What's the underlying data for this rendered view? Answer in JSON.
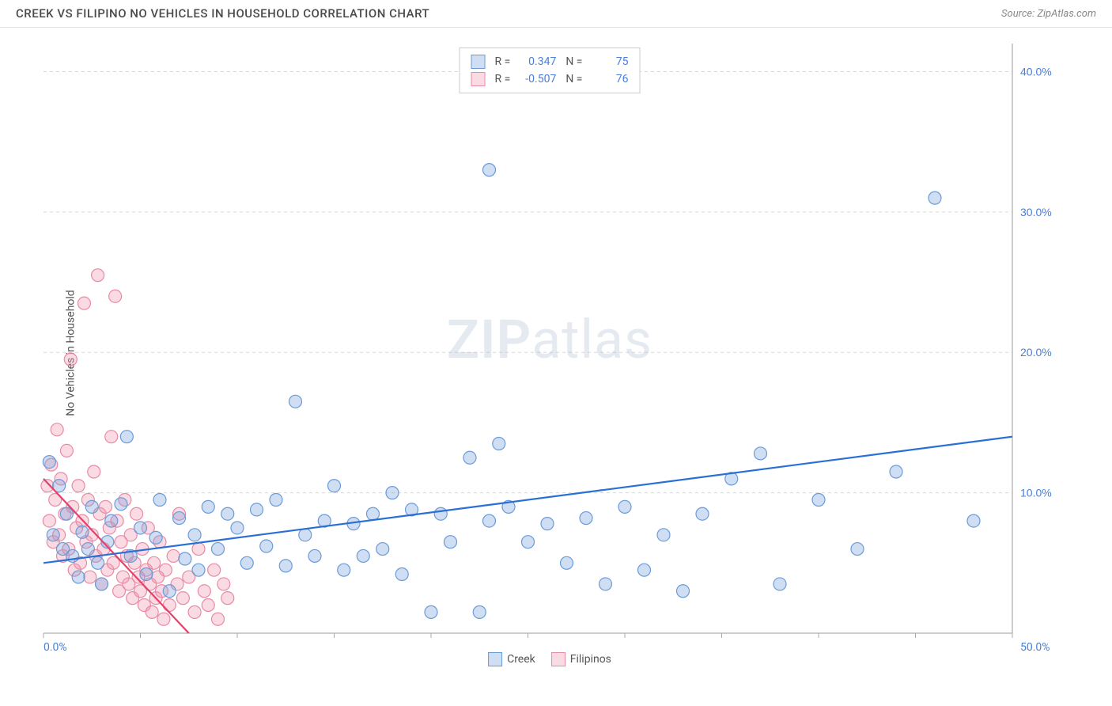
{
  "header": {
    "title": "CREEK VS FILIPINO NO VEHICLES IN HOUSEHOLD CORRELATION CHART",
    "source_label": "Source:",
    "source_name": "ZipAtlas.com"
  },
  "y_axis_label": "No Vehicles in Household",
  "watermark": {
    "bold": "ZIP",
    "rest": "atlas"
  },
  "chart": {
    "type": "scatter",
    "xlim": [
      0,
      50
    ],
    "ylim": [
      0,
      42
    ],
    "x_ticks": [
      0,
      5,
      10,
      15,
      20,
      25,
      30,
      35,
      40,
      45,
      50
    ],
    "y_gridlines": [
      10,
      20,
      30,
      40
    ],
    "y_tick_labels": [
      "10.0%",
      "20.0%",
      "30.0%",
      "40.0%"
    ],
    "x_min_label": "0.0%",
    "x_max_label": "50.0%",
    "grid_color": "#d8d8d8",
    "axis_color": "#999",
    "tick_color": "#aaa",
    "label_color": "#4a7fd8",
    "label_fontsize": 14,
    "background_color": "#ffffff",
    "marker_radius": 8,
    "marker_stroke_width": 1.2,
    "trend_line_width": 2.2
  },
  "series": {
    "creek": {
      "label": "Creek",
      "fill": "rgba(120,160,220,0.35)",
      "stroke": "#6a9bd8",
      "line_color": "#2a6fd6",
      "R": "0.347",
      "N": "75",
      "trend": {
        "x1": 0,
        "y1": 5.0,
        "x2": 50,
        "y2": 14.0
      },
      "points": [
        [
          0.3,
          12.2
        ],
        [
          0.5,
          7.0
        ],
        [
          0.8,
          10.5
        ],
        [
          1.0,
          6.0
        ],
        [
          1.2,
          8.5
        ],
        [
          1.5,
          5.5
        ],
        [
          1.8,
          4.0
        ],
        [
          2.0,
          7.2
        ],
        [
          2.3,
          6.0
        ],
        [
          2.5,
          9.0
        ],
        [
          2.8,
          5.0
        ],
        [
          3.0,
          3.5
        ],
        [
          3.3,
          6.5
        ],
        [
          3.5,
          8.0
        ],
        [
          4.0,
          9.2
        ],
        [
          4.3,
          14.0
        ],
        [
          4.5,
          5.5
        ],
        [
          5.0,
          7.5
        ],
        [
          5.3,
          4.2
        ],
        [
          5.8,
          6.8
        ],
        [
          6.0,
          9.5
        ],
        [
          6.5,
          3.0
        ],
        [
          7.0,
          8.2
        ],
        [
          7.3,
          5.3
        ],
        [
          7.8,
          7.0
        ],
        [
          8.0,
          4.5
        ],
        [
          8.5,
          9.0
        ],
        [
          9.0,
          6.0
        ],
        [
          9.5,
          8.5
        ],
        [
          10.0,
          7.5
        ],
        [
          10.5,
          5.0
        ],
        [
          11.0,
          8.8
        ],
        [
          11.5,
          6.2
        ],
        [
          12.0,
          9.5
        ],
        [
          12.5,
          4.8
        ],
        [
          13.0,
          16.5
        ],
        [
          13.5,
          7.0
        ],
        [
          14.0,
          5.5
        ],
        [
          14.5,
          8.0
        ],
        [
          15.0,
          10.5
        ],
        [
          15.5,
          4.5
        ],
        [
          16.0,
          7.8
        ],
        [
          16.5,
          5.5
        ],
        [
          17.0,
          8.5
        ],
        [
          17.5,
          6.0
        ],
        [
          18.0,
          10.0
        ],
        [
          18.5,
          4.2
        ],
        [
          19.0,
          8.8
        ],
        [
          20.0,
          1.5
        ],
        [
          20.5,
          8.5
        ],
        [
          21.0,
          6.5
        ],
        [
          22.0,
          12.5
        ],
        [
          22.5,
          1.5
        ],
        [
          23.0,
          8.0
        ],
        [
          23.5,
          13.5
        ],
        [
          23.0,
          33.0
        ],
        [
          24.0,
          9.0
        ],
        [
          25.0,
          6.5
        ],
        [
          26.0,
          7.8
        ],
        [
          27.0,
          5.0
        ],
        [
          28.0,
          8.2
        ],
        [
          29.0,
          3.5
        ],
        [
          30.0,
          9.0
        ],
        [
          31.0,
          4.5
        ],
        [
          32.0,
          7.0
        ],
        [
          33.0,
          3.0
        ],
        [
          34.0,
          8.5
        ],
        [
          35.5,
          11.0
        ],
        [
          37.0,
          12.8
        ],
        [
          38.0,
          3.5
        ],
        [
          40.0,
          9.5
        ],
        [
          42.0,
          6.0
        ],
        [
          44.0,
          11.5
        ],
        [
          46.0,
          31.0
        ],
        [
          48.0,
          8.0
        ]
      ]
    },
    "filipinos": {
      "label": "Filipinos",
      "fill": "rgba(240,150,175,0.35)",
      "stroke": "#e88ba5",
      "line_color": "#e6416a",
      "R": "-0.507",
      "N": "76",
      "trend": {
        "x1": 0,
        "y1": 11.0,
        "x2": 7.5,
        "y2": 0
      },
      "points": [
        [
          0.2,
          10.5
        ],
        [
          0.3,
          8.0
        ],
        [
          0.4,
          12.0
        ],
        [
          0.5,
          6.5
        ],
        [
          0.6,
          9.5
        ],
        [
          0.7,
          14.5
        ],
        [
          0.8,
          7.0
        ],
        [
          0.9,
          11.0
        ],
        [
          1.0,
          5.5
        ],
        [
          1.1,
          8.5
        ],
        [
          1.2,
          13.0
        ],
        [
          1.3,
          6.0
        ],
        [
          1.4,
          19.5
        ],
        [
          1.5,
          9.0
        ],
        [
          1.6,
          4.5
        ],
        [
          1.7,
          7.5
        ],
        [
          1.8,
          10.5
        ],
        [
          1.9,
          5.0
        ],
        [
          2.0,
          8.0
        ],
        [
          2.1,
          23.5
        ],
        [
          2.2,
          6.5
        ],
        [
          2.3,
          9.5
        ],
        [
          2.4,
          4.0
        ],
        [
          2.5,
          7.0
        ],
        [
          2.6,
          11.5
        ],
        [
          2.7,
          5.5
        ],
        [
          2.8,
          25.5
        ],
        [
          2.9,
          8.5
        ],
        [
          3.0,
          3.5
        ],
        [
          3.1,
          6.0
        ],
        [
          3.2,
          9.0
        ],
        [
          3.3,
          4.5
        ],
        [
          3.4,
          7.5
        ],
        [
          3.5,
          14.0
        ],
        [
          3.6,
          5.0
        ],
        [
          3.7,
          24.0
        ],
        [
          3.8,
          8.0
        ],
        [
          3.9,
          3.0
        ],
        [
          4.0,
          6.5
        ],
        [
          4.1,
          4.0
        ],
        [
          4.2,
          9.5
        ],
        [
          4.3,
          5.5
        ],
        [
          4.4,
          3.5
        ],
        [
          4.5,
          7.0
        ],
        [
          4.6,
          2.5
        ],
        [
          4.7,
          5.0
        ],
        [
          4.8,
          8.5
        ],
        [
          4.9,
          4.0
        ],
        [
          5.0,
          3.0
        ],
        [
          5.1,
          6.0
        ],
        [
          5.2,
          2.0
        ],
        [
          5.3,
          4.5
        ],
        [
          5.4,
          7.5
        ],
        [
          5.5,
          3.5
        ],
        [
          5.6,
          1.5
        ],
        [
          5.7,
          5.0
        ],
        [
          5.8,
          2.5
        ],
        [
          5.9,
          4.0
        ],
        [
          6.0,
          6.5
        ],
        [
          6.1,
          3.0
        ],
        [
          6.2,
          1.0
        ],
        [
          6.3,
          4.5
        ],
        [
          6.5,
          2.0
        ],
        [
          6.7,
          5.5
        ],
        [
          6.9,
          3.5
        ],
        [
          7.0,
          8.5
        ],
        [
          7.2,
          2.5
        ],
        [
          7.5,
          4.0
        ],
        [
          7.8,
          1.5
        ],
        [
          8.0,
          6.0
        ],
        [
          8.3,
          3.0
        ],
        [
          8.5,
          2.0
        ],
        [
          8.8,
          4.5
        ],
        [
          9.0,
          1.0
        ],
        [
          9.3,
          3.5
        ],
        [
          9.5,
          2.5
        ]
      ]
    }
  },
  "stats_labels": {
    "R": "R =",
    "N": "N ="
  },
  "legend": {
    "creek": "Creek",
    "filipinos": "Filipinos"
  }
}
